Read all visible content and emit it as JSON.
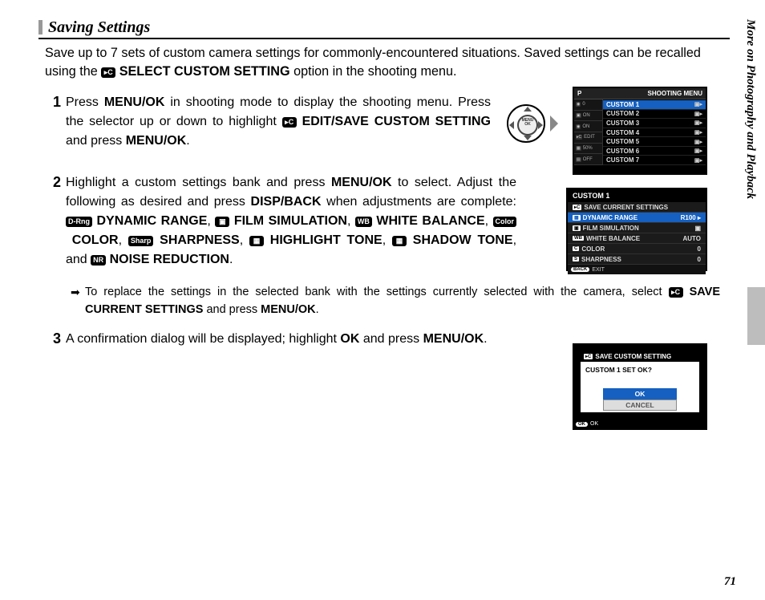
{
  "side_tab": "More on Photography and Playback",
  "page_number": "71",
  "section_title": "Saving Settings",
  "intro_parts": {
    "a": "Save up to 7 sets of custom camera settings for commonly-encountered situations.  Saved settings can be recalled using the ",
    "chip": "▸C",
    "b": "SELECT CUSTOM SETTING",
    "c": " option in the shooting menu."
  },
  "steps": {
    "s1": {
      "num": "1",
      "a": "Press ",
      "menuok": "MENU/OK",
      "b": " in shooting mode to display the shooting menu.  Press the selector up or down to highlight ",
      "chip": "▸C",
      "c": "EDIT/SAVE CUSTOM SET­TING",
      "d": " and press ",
      "e": "."
    },
    "s2": {
      "num": "2",
      "a": "Highlight a custom settings bank and press ",
      "menuok": "MENU/OK",
      "b": " to select.  Ad­just the following as desired and press ",
      "dispback": "DISP/BACK",
      "c": " when adjust­ments are complete: ",
      "chips": {
        "drng": "D-Rng",
        "film": "▣",
        "wb": "WB",
        "color": "Color",
        "sharp": "Sharp",
        "hi": "▦",
        "sh": "▦",
        "nr": "NR"
      },
      "labels": {
        "drng": "DYNAMIC RANGE",
        "film": "FILM SIMULATION",
        "wb": "WHITE BALANCE",
        "color": "COLOR",
        "sharp": "SHARPNESS",
        "hi": "HIGHLIGHT TONE",
        "sh": "SHADOW TONE",
        "nr": "NOISE REDUCTION"
      },
      "and": ", and "
    },
    "s3": {
      "num": "3",
      "a": "A confirmation dialog will be displayed; highlight ",
      "ok": "OK",
      "b": " and press ",
      "menuok": "MENU/OK",
      "c": "."
    }
  },
  "note": {
    "bullet": "➡",
    "a": "To replace the settings in the selected bank with the settings currently selected with the camera, select ",
    "chip": "▸C",
    "label": "SAVE CURRENT SETTINGS",
    "b": " and press ",
    "menuok": "MENU/OK",
    "c": "."
  },
  "lcd1": {
    "header_left": "P",
    "header_right": "SHOOTING MENU",
    "tabs": [
      {
        "ico": "◉",
        "t": "0"
      },
      {
        "ico": "▣",
        "t": "ON"
      },
      {
        "ico": "◉",
        "t": "ON"
      },
      {
        "ico": "▸C",
        "t": "EDIT"
      },
      {
        "ico": "▦",
        "t": "50%"
      },
      {
        "ico": "▤",
        "t": "OFF"
      }
    ],
    "rows": [
      {
        "l": "CUSTOM 1",
        "r": "▣▸",
        "sel": true
      },
      {
        "l": "CUSTOM 2",
        "r": "▣▸",
        "sel": false
      },
      {
        "l": "CUSTOM 3",
        "r": "▣▸",
        "sel": false
      },
      {
        "l": "CUSTOM 4",
        "r": "▣▸",
        "sel": false
      },
      {
        "l": "CUSTOM 5",
        "r": "▣▸",
        "sel": false
      },
      {
        "l": "CUSTOM 6",
        "r": "▣▸",
        "sel": false
      },
      {
        "l": "CUSTOM 7",
        "r": "▣▸",
        "sel": false
      }
    ]
  },
  "lcd2": {
    "title": "CUSTOM 1",
    "rows": [
      {
        "ico": "▸C",
        "l": "SAVE CURRENT SETTINGS",
        "v": "",
        "sel": false
      },
      {
        "ico": "▦",
        "l": "DYNAMIC RANGE",
        "v": "R100 ▸",
        "sel": true
      },
      {
        "ico": "▣",
        "l": "FILM SIMULATION",
        "v": "▣",
        "sel": false
      },
      {
        "ico": "WB",
        "l": "WHITE BALANCE",
        "v": "AUTO",
        "sel": false
      },
      {
        "ico": "C",
        "l": "COLOR",
        "v": "0",
        "sel": false
      },
      {
        "ico": "S",
        "l": "SHARPNESS",
        "v": "0",
        "sel": false
      }
    ],
    "footer_btn": "BACK",
    "footer_txt": "EXIT"
  },
  "lcd3": {
    "hdr_ico": "▸C",
    "hdr": "SAVE CUSTOM SETTING",
    "question": "CUSTOM 1 SET OK?",
    "ok": "OK",
    "cancel": "CANCEL",
    "ftr_btn": "OK",
    "ftr_txt": "OK"
  },
  "colors": {
    "highlight_blue": "#1560c0",
    "side_gray": "#bdbdbd",
    "title_bar": "#999999"
  }
}
